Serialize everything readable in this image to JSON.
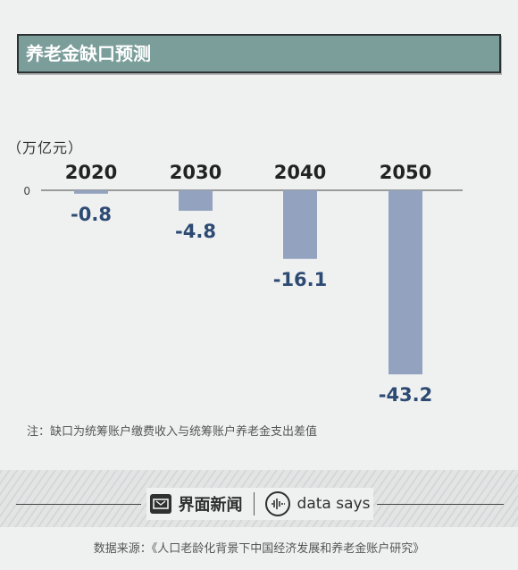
{
  "header": {
    "title": "养老金缺口预测"
  },
  "unit_label": "（万亿元）",
  "note": "注：缺口为统筹账户缴费收入与统筹账户养老金支出差值",
  "footer": {
    "brand_cn": "界面新闻",
    "brand_en": "data says",
    "source": "数据来源：《人口老龄化背景下中国经济发展和养老金账户研究》"
  },
  "colors": {
    "bar": "#93a3bf",
    "value_label": "#2d4a72",
    "year_label": "#222222",
    "title_bg": "#7b9e9b"
  },
  "chart_data": {
    "type": "bar",
    "title": "养老金缺口预测",
    "ylabel": "（万亿元）",
    "categories": [
      "2020",
      "2030",
      "2040",
      "2050"
    ],
    "values": [
      -0.8,
      -4.8,
      -16.1,
      -43.2
    ],
    "value_labels": [
      "-0.8",
      "-4.8",
      "-16.1",
      "-43.2"
    ],
    "baseline_label": "0",
    "ylim": [
      -43.2,
      0
    ],
    "grid": false,
    "legend": "none"
  }
}
